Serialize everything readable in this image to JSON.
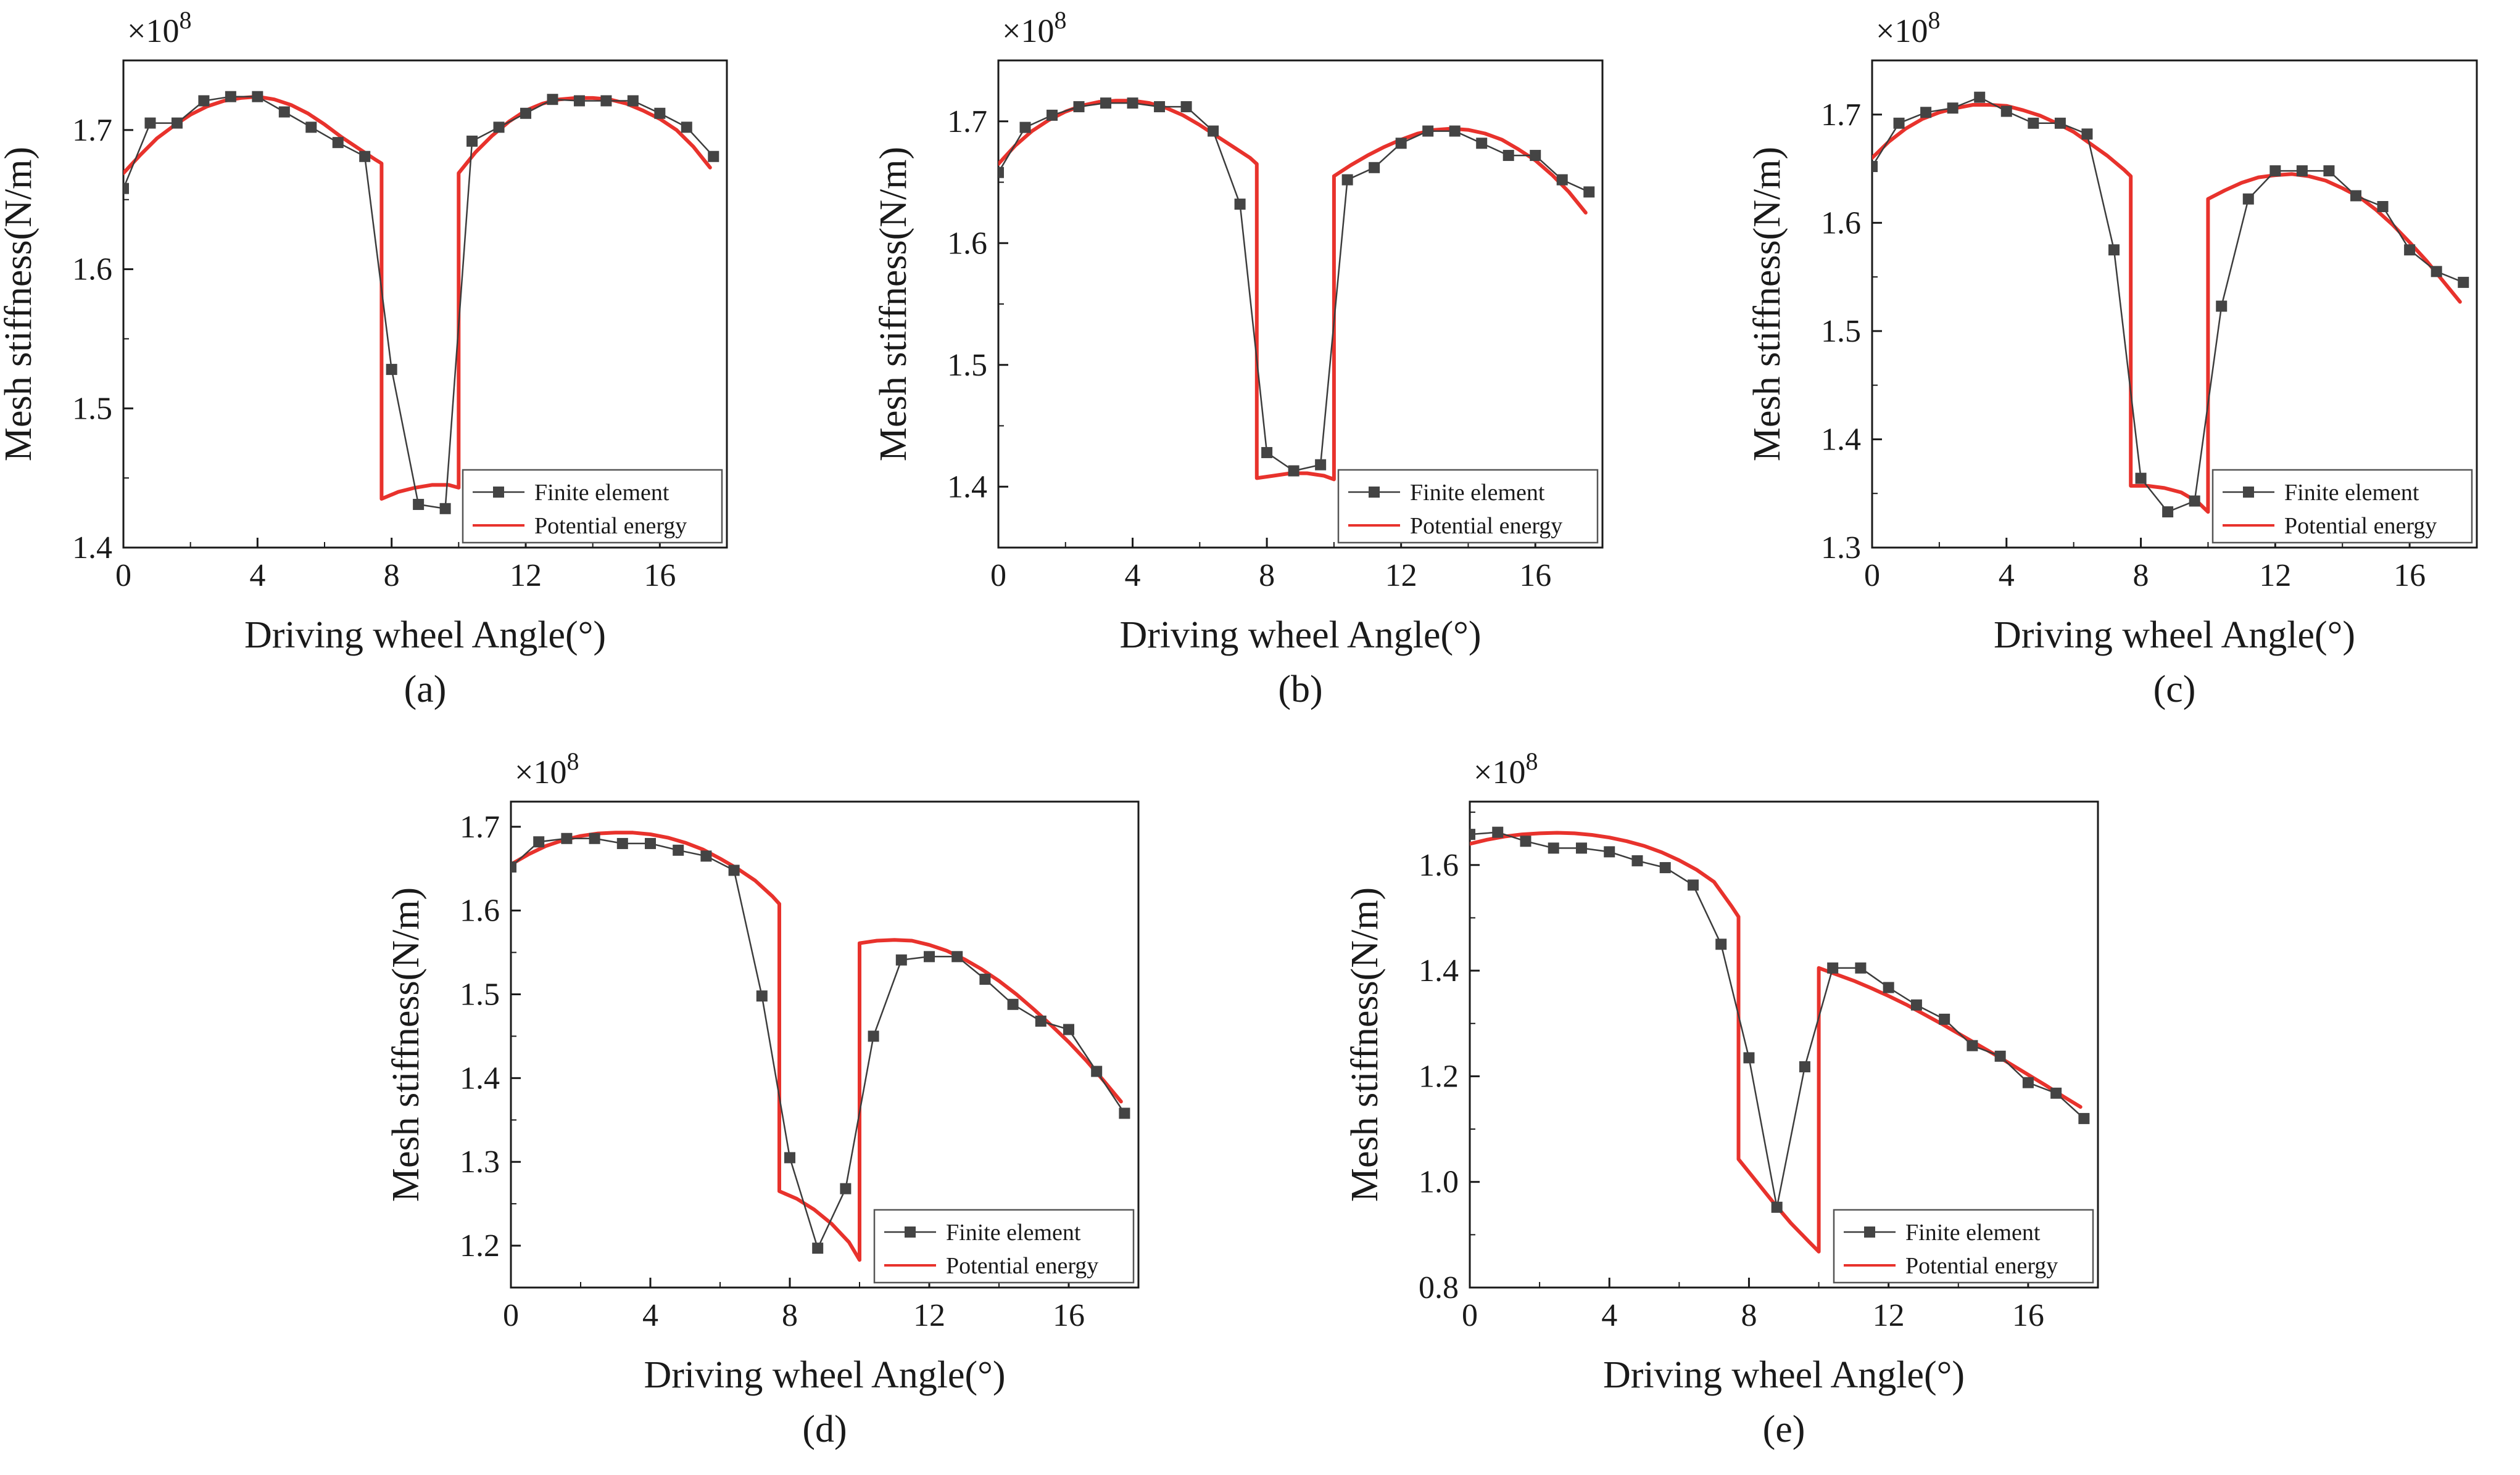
{
  "colors": {
    "finite_element": "#3c3c3c",
    "finite_element_marker": "#444444",
    "potential_energy": "#e8322c",
    "axis": "#1a1a1a",
    "legend_border": "#555555"
  },
  "chart_data": [
    {
      "type": "line",
      "panel_label": "(a)",
      "multiplier": "×10",
      "multiplier_exp": "8",
      "xlabel": "Driving wheel Angle(°)",
      "ylabel": "Mesh stiffness(N/m)",
      "xlim": [
        0,
        18
      ],
      "ylim": [
        1.4,
        1.75
      ],
      "xticks": [
        0,
        4,
        8,
        12,
        16
      ],
      "xtick_labels": [
        "0",
        "4",
        "8",
        "12",
        "16"
      ],
      "yticks": [
        1.4,
        1.5,
        1.6,
        1.7
      ],
      "ytick_labels": [
        "1.4",
        "1.5",
        "1.6",
        "1.7"
      ],
      "legend": [
        "Finite element",
        "Potential energy"
      ],
      "series": [
        {
          "name": "Finite element",
          "style": "marker-line",
          "x": [
            0,
            0.8,
            1.6,
            2.4,
            3.2,
            4.0,
            4.8,
            5.6,
            6.4,
            7.2,
            8.0,
            8.8,
            9.6,
            10.4,
            11.2,
            12.0,
            12.8,
            13.6,
            14.4,
            15.2,
            16.0,
            16.8,
            17.6
          ],
          "y": [
            1.658,
            1.705,
            1.705,
            1.721,
            1.724,
            1.724,
            1.713,
            1.702,
            1.691,
            1.681,
            1.528,
            1.431,
            1.428,
            1.692,
            1.702,
            1.712,
            1.722,
            1.721,
            1.721,
            1.721,
            1.712,
            1.702,
            1.681
          ]
        },
        {
          "name": "Potential energy",
          "style": "line",
          "x": [
            0,
            0.5,
            1,
            1.5,
            2,
            2.5,
            3,
            3.5,
            4,
            4.5,
            5,
            5.5,
            6,
            6.5,
            7,
            7.5,
            7.7,
            7.7,
            8.2,
            8.7,
            9.2,
            9.7,
            10.0,
            10.0,
            10.5,
            11,
            11.5,
            12,
            12.5,
            13,
            13.5,
            14,
            14.5,
            15,
            15.5,
            16,
            16.5,
            17,
            17.5
          ],
          "y": [
            1.669,
            1.682,
            1.694,
            1.703,
            1.711,
            1.717,
            1.721,
            1.723,
            1.724,
            1.722,
            1.718,
            1.712,
            1.704,
            1.695,
            1.687,
            1.679,
            1.676,
            1.435,
            1.44,
            1.443,
            1.445,
            1.445,
            1.443,
            1.669,
            1.684,
            1.696,
            1.706,
            1.714,
            1.719,
            1.722,
            1.723,
            1.723,
            1.722,
            1.719,
            1.714,
            1.708,
            1.7,
            1.688,
            1.673
          ]
        }
      ]
    },
    {
      "type": "line",
      "panel_label": "(b)",
      "multiplier": "×10",
      "multiplier_exp": "8",
      "xlabel": "Driving wheel Angle(°)",
      "ylabel": "Mesh stiffness(N/m)",
      "xlim": [
        0,
        18
      ],
      "ylim": [
        1.35,
        1.75
      ],
      "xticks": [
        0,
        4,
        8,
        12,
        16
      ],
      "xtick_labels": [
        "0",
        "4",
        "8",
        "12",
        "16"
      ],
      "yticks": [
        1.4,
        1.5,
        1.6,
        1.7
      ],
      "ytick_labels": [
        "1.4",
        "1.5",
        "1.6",
        "1.7"
      ],
      "legend": [
        "Finite element",
        "Potential energy"
      ],
      "series": [
        {
          "name": "Finite element",
          "style": "marker-line",
          "x": [
            0,
            0.8,
            1.6,
            2.4,
            3.2,
            4.0,
            4.8,
            5.6,
            6.4,
            7.2,
            8.0,
            8.8,
            9.6,
            10.4,
            11.2,
            12.0,
            12.8,
            13.6,
            14.4,
            15.2,
            16.0,
            16.8,
            17.6
          ],
          "y": [
            1.658,
            1.695,
            1.705,
            1.712,
            1.715,
            1.715,
            1.712,
            1.712,
            1.692,
            1.632,
            1.428,
            1.413,
            1.418,
            1.652,
            1.662,
            1.682,
            1.692,
            1.692,
            1.682,
            1.672,
            1.672,
            1.652,
            1.642
          ]
        },
        {
          "name": "Potential energy",
          "style": "line",
          "x": [
            0,
            0.5,
            1,
            1.5,
            2,
            2.5,
            3,
            3.5,
            4,
            4.5,
            5,
            5.5,
            6,
            6.5,
            7,
            7.5,
            7.7,
            7.7,
            8.2,
            8.7,
            9.2,
            9.7,
            10.0,
            10.0,
            10.5,
            11,
            11.5,
            12,
            12.5,
            13,
            13.5,
            14,
            14.5,
            15,
            15.5,
            16,
            16.5,
            17,
            17.5
          ],
          "y": [
            1.665,
            1.68,
            1.692,
            1.701,
            1.708,
            1.713,
            1.716,
            1.717,
            1.717,
            1.715,
            1.711,
            1.705,
            1.697,
            1.688,
            1.679,
            1.67,
            1.665,
            1.407,
            1.409,
            1.411,
            1.411,
            1.409,
            1.406,
            1.655,
            1.664,
            1.672,
            1.679,
            1.685,
            1.69,
            1.693,
            1.694,
            1.693,
            1.69,
            1.685,
            1.677,
            1.668,
            1.656,
            1.642,
            1.625
          ]
        }
      ]
    },
    {
      "type": "line",
      "panel_label": "(c)",
      "multiplier": "×10",
      "multiplier_exp": "8",
      "xlabel": "Driving wheel Angle(°)",
      "ylabel": "Mesh stiffness(N/m)",
      "xlim": [
        0,
        18
      ],
      "ylim": [
        1.3,
        1.75
      ],
      "xticks": [
        0,
        4,
        8,
        12,
        16
      ],
      "xtick_labels": [
        "0",
        "4",
        "8",
        "12",
        "16"
      ],
      "yticks": [
        1.3,
        1.4,
        1.5,
        1.6,
        1.7
      ],
      "ytick_labels": [
        "1.3",
        "1.4",
        "1.5",
        "1.6",
        "1.7"
      ],
      "legend": [
        "Finite element",
        "Potential energy"
      ],
      "series": [
        {
          "name": "Finite element",
          "style": "marker-line",
          "x": [
            0,
            0.8,
            1.6,
            2.4,
            3.2,
            4.0,
            4.8,
            5.6,
            6.4,
            7.2,
            8.0,
            8.8,
            9.6,
            10.4,
            11.2,
            12.0,
            12.8,
            13.6,
            14.4,
            15.2,
            16.0,
            16.8,
            17.6
          ],
          "y": [
            1.652,
            1.692,
            1.702,
            1.706,
            1.716,
            1.703,
            1.692,
            1.692,
            1.682,
            1.575,
            1.364,
            1.333,
            1.343,
            1.523,
            1.622,
            1.648,
            1.648,
            1.648,
            1.625,
            1.615,
            1.575,
            1.555,
            1.545
          ]
        },
        {
          "name": "Potential energy",
          "style": "line",
          "x": [
            0,
            0.5,
            1,
            1.5,
            2,
            2.5,
            3,
            3.5,
            4,
            4.5,
            5,
            5.5,
            6,
            6.5,
            7,
            7.5,
            7.7,
            7.7,
            8.2,
            8.7,
            9.2,
            9.7,
            10.0,
            10.0,
            10.5,
            11,
            11.5,
            12,
            12.5,
            13,
            13.5,
            14,
            14.5,
            15,
            15.5,
            16,
            16.5,
            17,
            17.5
          ],
          "y": [
            1.66,
            1.675,
            1.687,
            1.696,
            1.702,
            1.706,
            1.709,
            1.709,
            1.708,
            1.704,
            1.699,
            1.692,
            1.684,
            1.673,
            1.662,
            1.649,
            1.643,
            1.357,
            1.357,
            1.355,
            1.351,
            1.342,
            1.333,
            1.622,
            1.63,
            1.637,
            1.642,
            1.644,
            1.645,
            1.643,
            1.639,
            1.632,
            1.624,
            1.612,
            1.598,
            1.582,
            1.565,
            1.546,
            1.527
          ]
        }
      ]
    },
    {
      "type": "line",
      "panel_label": "(d)",
      "multiplier": "×10",
      "multiplier_exp": "8",
      "xlabel": "Driving wheel Angle(°)",
      "ylabel": "Mesh stiffness(N/m)",
      "xlim": [
        0,
        18
      ],
      "ylim": [
        1.15,
        1.73
      ],
      "xticks": [
        0,
        4,
        8,
        12,
        16
      ],
      "xtick_labels": [
        "0",
        "4",
        "8",
        "12",
        "16"
      ],
      "yticks": [
        1.2,
        1.3,
        1.4,
        1.5,
        1.6,
        1.7
      ],
      "ytick_labels": [
        "1.2",
        "1.3",
        "1.4",
        "1.5",
        "1.6",
        "1.7"
      ],
      "legend": [
        "Finite element",
        "Potential energy"
      ],
      "series": [
        {
          "name": "Finite element",
          "style": "marker-line",
          "x": [
            0,
            0.8,
            1.6,
            2.4,
            3.2,
            4.0,
            4.8,
            5.6,
            6.4,
            7.2,
            8.0,
            8.8,
            9.6,
            10.4,
            11.2,
            12.0,
            12.8,
            13.6,
            14.4,
            15.2,
            16.0,
            16.8,
            17.6
          ],
          "y": [
            1.652,
            1.682,
            1.686,
            1.686,
            1.68,
            1.68,
            1.672,
            1.665,
            1.648,
            1.498,
            1.305,
            1.197,
            1.268,
            1.45,
            1.541,
            1.545,
            1.545,
            1.518,
            1.488,
            1.468,
            1.458,
            1.408,
            1.358
          ]
        },
        {
          "name": "Potential energy",
          "style": "line",
          "x": [
            0,
            0.5,
            1,
            1.5,
            2,
            2.5,
            3,
            3.5,
            4,
            4.5,
            5,
            5.5,
            6,
            6.5,
            7,
            7.5,
            7.7,
            7.7,
            8.2,
            8.7,
            9.2,
            9.7,
            10.0,
            10.0,
            10.5,
            11,
            11.5,
            12,
            12.5,
            13,
            13.5,
            14,
            14.5,
            15,
            15.5,
            16,
            16.5,
            17,
            17.5
          ],
          "y": [
            1.655,
            1.667,
            1.677,
            1.684,
            1.689,
            1.692,
            1.693,
            1.693,
            1.691,
            1.687,
            1.681,
            1.673,
            1.662,
            1.65,
            1.636,
            1.617,
            1.608,
            1.265,
            1.256,
            1.243,
            1.226,
            1.204,
            1.183,
            1.561,
            1.564,
            1.565,
            1.564,
            1.559,
            1.552,
            1.542,
            1.53,
            1.516,
            1.5,
            1.482,
            1.463,
            1.443,
            1.421,
            1.397,
            1.372
          ]
        }
      ]
    },
    {
      "type": "line",
      "panel_label": "(e)",
      "multiplier": "×10",
      "multiplier_exp": "8",
      "xlabel": "Driving wheel Angle(°)",
      "ylabel": "Mesh stiffness(N/m)",
      "xlim": [
        0,
        18
      ],
      "ylim": [
        0.8,
        1.72
      ],
      "xticks": [
        0,
        4,
        8,
        12,
        16
      ],
      "xtick_labels": [
        "0",
        "4",
        "8",
        "12",
        "16"
      ],
      "yticks": [
        0.8,
        1.0,
        1.2,
        1.4,
        1.6
      ],
      "ytick_labels": [
        "0.8",
        "1.0",
        "1.2",
        "1.4",
        "1.6"
      ],
      "legend": [
        "Finite element",
        "Potential energy"
      ],
      "series": [
        {
          "name": "Finite element",
          "style": "marker-line",
          "x": [
            0,
            0.8,
            1.6,
            2.4,
            3.2,
            4.0,
            4.8,
            5.6,
            6.4,
            7.2,
            8.0,
            8.8,
            9.6,
            10.4,
            11.2,
            12.0,
            12.8,
            13.6,
            14.4,
            15.2,
            16.0,
            16.8,
            17.6
          ],
          "y": [
            1.658,
            1.662,
            1.645,
            1.632,
            1.632,
            1.625,
            1.608,
            1.595,
            1.562,
            1.45,
            1.235,
            0.952,
            1.218,
            1.405,
            1.405,
            1.368,
            1.335,
            1.308,
            1.258,
            1.238,
            1.188,
            1.168,
            1.12
          ]
        },
        {
          "name": "Potential energy",
          "style": "line",
          "x": [
            0,
            0.5,
            1,
            1.5,
            2,
            2.5,
            3,
            3.5,
            4,
            4.5,
            5,
            5.5,
            6,
            6.5,
            7,
            7.5,
            7.7,
            7.7,
            8.2,
            8.7,
            9.2,
            9.7,
            10.0,
            10.0,
            10.5,
            11,
            11.5,
            12,
            12.5,
            13,
            13.5,
            14,
            14.5,
            15,
            15.5,
            16,
            16.5,
            17,
            17.5
          ],
          "y": [
            1.64,
            1.648,
            1.654,
            1.658,
            1.66,
            1.661,
            1.66,
            1.657,
            1.652,
            1.645,
            1.636,
            1.624,
            1.609,
            1.591,
            1.568,
            1.522,
            1.502,
            1.043,
            1.002,
            0.961,
            0.922,
            0.888,
            0.868,
            1.405,
            1.393,
            1.381,
            1.367,
            1.352,
            1.336,
            1.318,
            1.3,
            1.281,
            1.262,
            1.243,
            1.223,
            1.203,
            1.183,
            1.162,
            1.142
          ]
        }
      ]
    }
  ]
}
